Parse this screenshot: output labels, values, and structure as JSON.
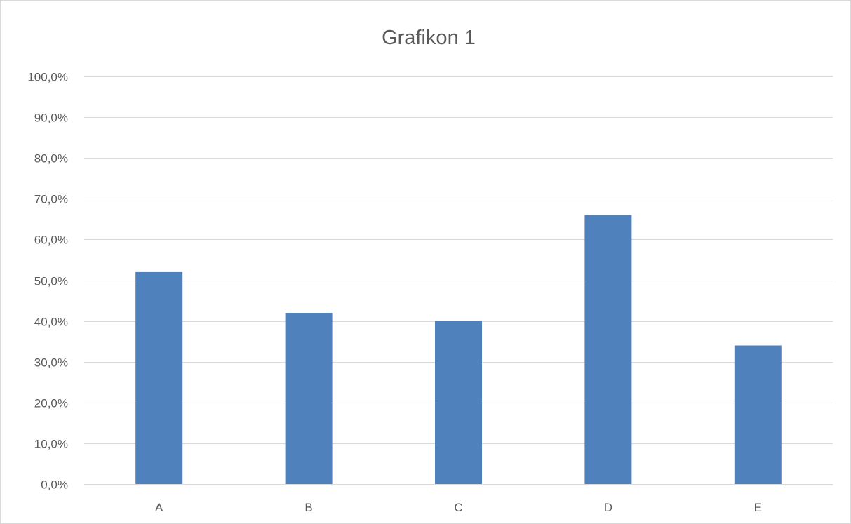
{
  "chart_data": {
    "type": "bar",
    "title": "Grafikon 1",
    "categories": [
      "A",
      "B",
      "C",
      "D",
      "E"
    ],
    "values": [
      0.52,
      0.42,
      0.4,
      0.66,
      0.34
    ],
    "ylim": [
      0,
      1
    ],
    "y_ticks": [
      0,
      0.1,
      0.2,
      0.3,
      0.4,
      0.5,
      0.6,
      0.7,
      0.8,
      0.9,
      1.0
    ],
    "y_tick_labels": [
      "0,0%",
      "10,0%",
      "20,0%",
      "30,0%",
      "40,0%",
      "50,0%",
      "60,0%",
      "70,0%",
      "80,0%",
      "90,0%",
      "100,0%"
    ],
    "grid": true,
    "legend": "none",
    "colors": {
      "bar": "#4f81bd",
      "border": "#d9d9d9",
      "grid": "#d9d9d9",
      "text": "#595959"
    }
  }
}
